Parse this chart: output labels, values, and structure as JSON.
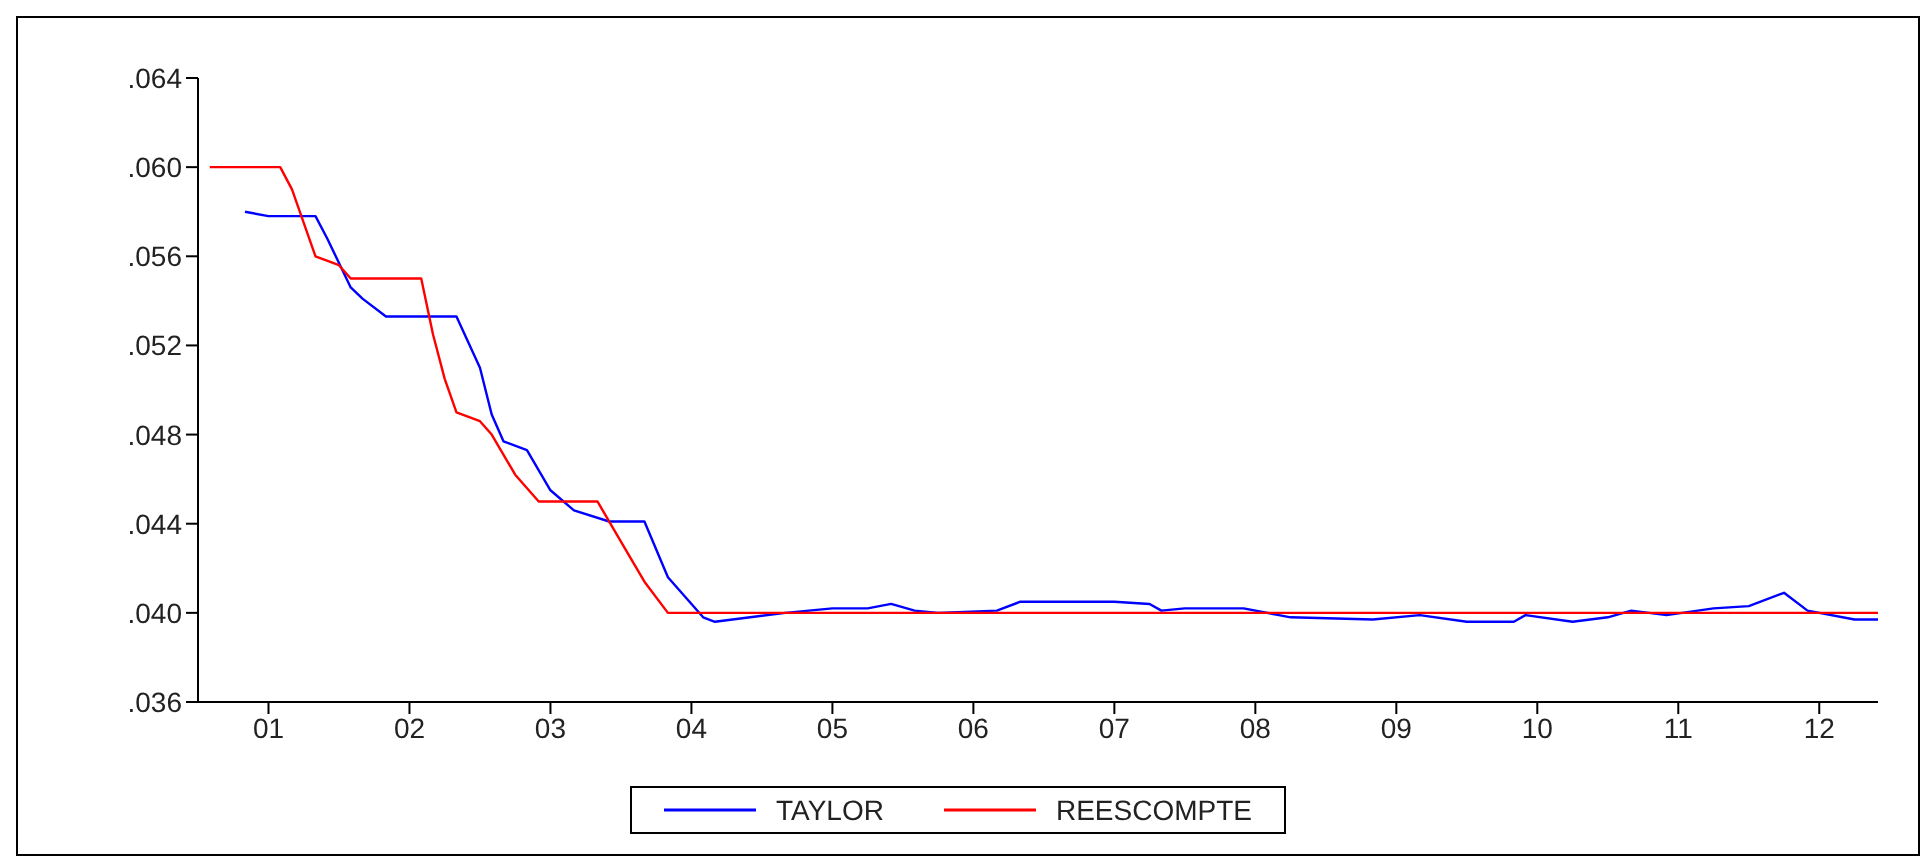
{
  "chart_data": {
    "type": "line",
    "legend": "bottom",
    "grid": false,
    "marker": "none",
    "line_style": "solid",
    "xlim": [
      "2001-01",
      "2012-12"
    ],
    "xticks": [
      {
        "value": "2001-07",
        "label": "01"
      },
      {
        "value": "2002-07",
        "label": "02"
      },
      {
        "value": "2003-07",
        "label": "03"
      },
      {
        "value": "2004-07",
        "label": "04"
      },
      {
        "value": "2005-07",
        "label": "05"
      },
      {
        "value": "2006-07",
        "label": "06"
      },
      {
        "value": "2007-07",
        "label": "07"
      },
      {
        "value": "2008-07",
        "label": "08"
      },
      {
        "value": "2009-07",
        "label": "09"
      },
      {
        "value": "2010-07",
        "label": "10"
      },
      {
        "value": "2011-07",
        "label": "11"
      },
      {
        "value": "2012-07",
        "label": "12"
      }
    ],
    "ylim": [
      0.036,
      0.064
    ],
    "yticks": [
      {
        "value": 0.036,
        "label": ".036"
      },
      {
        "value": 0.04,
        "label": ".040"
      },
      {
        "value": 0.044,
        "label": ".044"
      },
      {
        "value": 0.048,
        "label": ".048"
      },
      {
        "value": 0.052,
        "label": ".052"
      },
      {
        "value": 0.056,
        "label": ".056"
      },
      {
        "value": 0.06,
        "label": ".060"
      },
      {
        "value": 0.064,
        "label": ".064"
      }
    ],
    "series": [
      {
        "name": "TAYLOR",
        "color": "#0000ff",
        "x": [
          "2001-05",
          "2001-07",
          "2001-11",
          "2001-12",
          "2002-02",
          "2002-03",
          "2002-05",
          "2002-11",
          "2003-01",
          "2003-02",
          "2003-03",
          "2003-05",
          "2003-07",
          "2003-09",
          "2003-12",
          "2004-03",
          "2004-05",
          "2004-08",
          "2004-09",
          "2004-12",
          "2005-03",
          "2005-07",
          "2005-10",
          "2005-12",
          "2006-02",
          "2006-04",
          "2006-09",
          "2006-11",
          "2007-07",
          "2007-10",
          "2007-11",
          "2008-01",
          "2008-06",
          "2008-09",
          "2008-10",
          "2009-05",
          "2009-09",
          "2010-01",
          "2010-05",
          "2010-06",
          "2010-10",
          "2011-01",
          "2011-03",
          "2011-06",
          "2011-10",
          "2012-01",
          "2012-04",
          "2012-06",
          "2012-10",
          "2012-12"
        ],
        "values": [
          0.058,
          0.0578,
          0.0578,
          0.0568,
          0.0546,
          0.0541,
          0.0533,
          0.0533,
          0.051,
          0.0489,
          0.0477,
          0.0473,
          0.0455,
          0.0446,
          0.0441,
          0.0441,
          0.0416,
          0.0398,
          0.0396,
          0.0398,
          0.04,
          0.0402,
          0.0402,
          0.0404,
          0.0401,
          0.04,
          0.0401,
          0.0405,
          0.0405,
          0.0404,
          0.0401,
          0.0402,
          0.0402,
          0.0399,
          0.0398,
          0.0397,
          0.0399,
          0.0396,
          0.0396,
          0.0399,
          0.0396,
          0.0398,
          0.0401,
          0.0399,
          0.0402,
          0.0403,
          0.0409,
          0.0401,
          0.0397,
          0.0397
        ]
      },
      {
        "name": "REESCOMPTE",
        "color": "#ff0000",
        "x": [
          "2001-02",
          "2001-08",
          "2001-09",
          "2001-10",
          "2001-11",
          "2002-01",
          "2002-02",
          "2002-08",
          "2002-09",
          "2002-10",
          "2002-11",
          "2003-01",
          "2003-02",
          "2003-04",
          "2003-06",
          "2003-11",
          "2004-01",
          "2004-03",
          "2004-05",
          "2012-12"
        ],
        "values": [
          0.06,
          0.06,
          0.059,
          0.0575,
          0.056,
          0.0556,
          0.055,
          0.055,
          0.0525,
          0.0505,
          0.049,
          0.0486,
          0.048,
          0.0462,
          0.045,
          0.045,
          0.0432,
          0.0414,
          0.04,
          0.04
        ]
      }
    ]
  }
}
